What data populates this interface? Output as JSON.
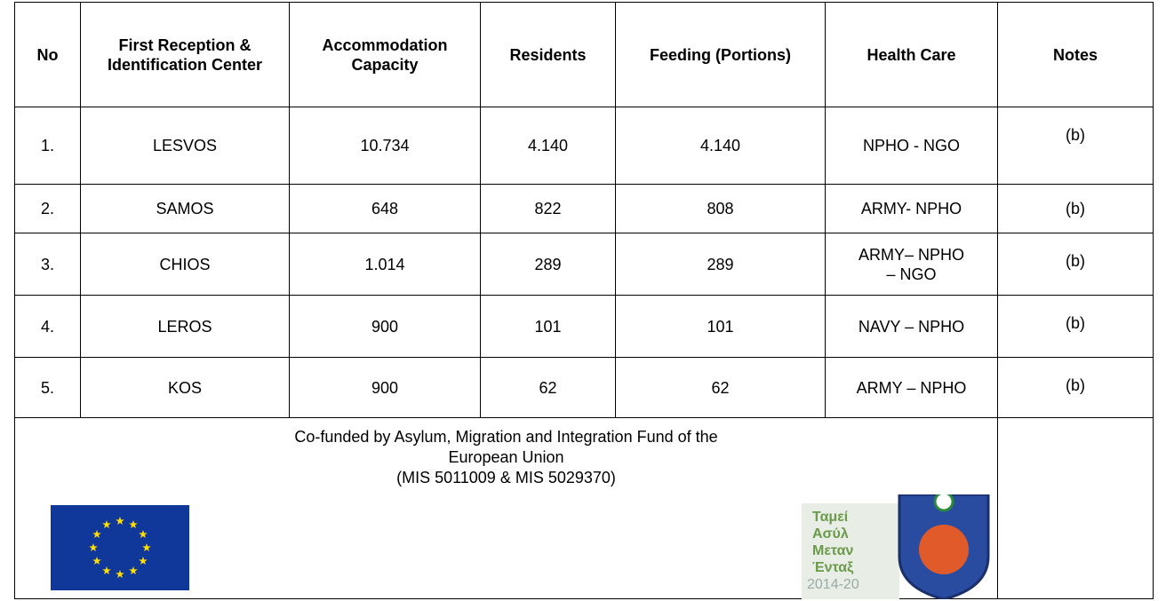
{
  "table": {
    "headers": [
      "No",
      "First Reception & Identification Center",
      "Accommodation Capacity",
      "Residents",
      "Feeding (Portions)",
      "Health Care",
      "Notes"
    ],
    "rows": [
      [
        "1.",
        "LESVOS",
        "10.734",
        "4.140",
        "4.140",
        "NPHO - NGO",
        "(b)"
      ],
      [
        "2.",
        "SAMOS",
        "648",
        "822",
        "808",
        "ARMY- NPHO",
        "(b)"
      ],
      [
        "3.",
        "CHIOS",
        "1.014",
        "289",
        "289",
        "ARMY– NPHO – NGO",
        "(b)"
      ],
      [
        "4.",
        "LEROS",
        "900",
        "101",
        "101",
        "NAVY – NPHO",
        "(b)"
      ],
      [
        "5.",
        "KOS",
        "900",
        "62",
        "62",
        "ARMY – NPHO",
        "(b)"
      ]
    ]
  },
  "footer": {
    "text": [
      "Co-funded by Asylum, Migration and Integration Fund of the",
      "European Union",
      "(MIS 5011009 & MIS 5029370)"
    ],
    "logo_text": [
      "Ταμεί",
      "Ασύλ",
      "Μεταν",
      "Ένταξ",
      "2014-20"
    ]
  }
}
